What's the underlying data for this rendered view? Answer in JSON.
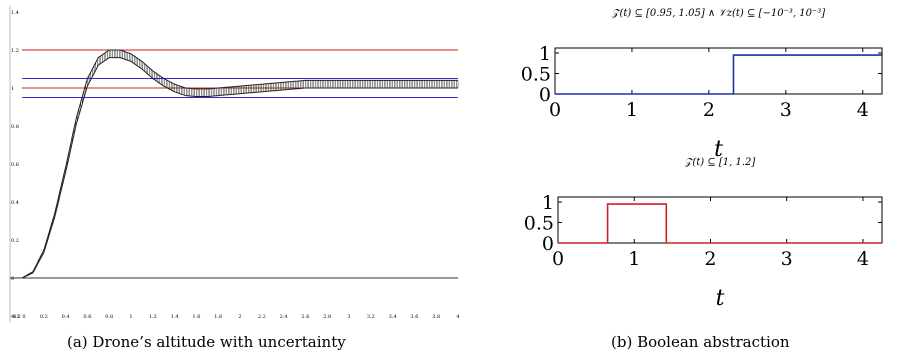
{
  "captions": {
    "a": "(a) Drone’s altitude with uncertainty",
    "b": "(b) Boolean abstraction"
  },
  "chart_data": [
    {
      "type": "line",
      "title": "",
      "xlim": [
        0,
        4
      ],
      "ylim": [
        -0.2,
        1.4
      ],
      "x_ticks": [
        "0",
        "0.2",
        "0.4",
        "0.6",
        "0.8",
        "1",
        "1.2",
        "1.4",
        "1.6",
        "1.8",
        "2",
        "2.2",
        "2.4",
        "2.6",
        "2.8",
        "3",
        "3.2",
        "3.4",
        "3.6",
        "3.8",
        "4"
      ],
      "y_ticks": [
        "-0.2",
        "0",
        "0.2",
        "0.4",
        "0.6",
        "0.8",
        "1",
        "1.2",
        "1.4"
      ],
      "x_origin_label": "-0.1",
      "thresholds": [
        {
          "y": 1.2,
          "color": "#d22020"
        },
        {
          "y": 1.05,
          "color": "#2a2ad8"
        },
        {
          "y": 1.0,
          "color": "#c03020"
        },
        {
          "y": 0.95,
          "color": "#2a2ad8"
        }
      ],
      "series": [
        {
          "x": [
            0,
            0.1,
            0.2,
            0.3,
            0.4,
            0.5,
            0.6,
            0.7,
            0.8,
            0.9,
            1.0,
            1.1,
            1.2,
            1.3,
            1.4,
            1.5,
            1.6,
            1.7,
            1.8,
            1.9,
            2.0,
            2.2,
            2.4,
            2.6,
            2.8,
            3.0,
            3.2,
            3.4,
            3.6,
            3.8,
            4.0
          ],
          "y": [
            0,
            0.03,
            0.14,
            0.33,
            0.57,
            0.83,
            1.03,
            1.14,
            1.18,
            1.18,
            1.16,
            1.12,
            1.07,
            1.03,
            1.0,
            0.98,
            0.975,
            0.975,
            0.98,
            0.985,
            0.99,
            1.0,
            1.01,
            1.02,
            1.02,
            1.02,
            1.02,
            1.02,
            1.02,
            1.02,
            1.02
          ],
          "band": 0.02,
          "color": "#222222"
        }
      ]
    },
    {
      "type": "line",
      "title": "𝒵(t) ⊆ [0.95, 1.05] ∧ 𝒱z(t) ⊆ [−10⁻³, 10⁻³]",
      "xlabel": "t",
      "xlim": [
        0,
        4.25
      ],
      "ylim": [
        0,
        1
      ],
      "x_ticks": [
        "0",
        "1",
        "2",
        "3",
        "4"
      ],
      "y_ticks": [
        "0",
        "0.5",
        "1"
      ],
      "series": [
        {
          "x": [
            0,
            2.32,
            2.32,
            4.25
          ],
          "y": [
            0,
            0,
            0.95,
            0.95
          ],
          "color": "#1f2fa8"
        }
      ]
    },
    {
      "type": "line",
      "title": "𝒵(t) ⊆ [1, 1.2]",
      "xlabel": "t",
      "xlim": [
        0,
        4.25
      ],
      "ylim": [
        0,
        1
      ],
      "x_ticks": [
        "0",
        "1",
        "2",
        "3",
        "4"
      ],
      "y_ticks": [
        "0",
        "0.5",
        "1"
      ],
      "series": [
        {
          "x": [
            0,
            0.65,
            0.65,
            1.42,
            1.42,
            4.25
          ],
          "y": [
            0,
            0,
            0.95,
            0.95,
            0,
            0
          ],
          "color": "#d02020"
        }
      ]
    }
  ]
}
